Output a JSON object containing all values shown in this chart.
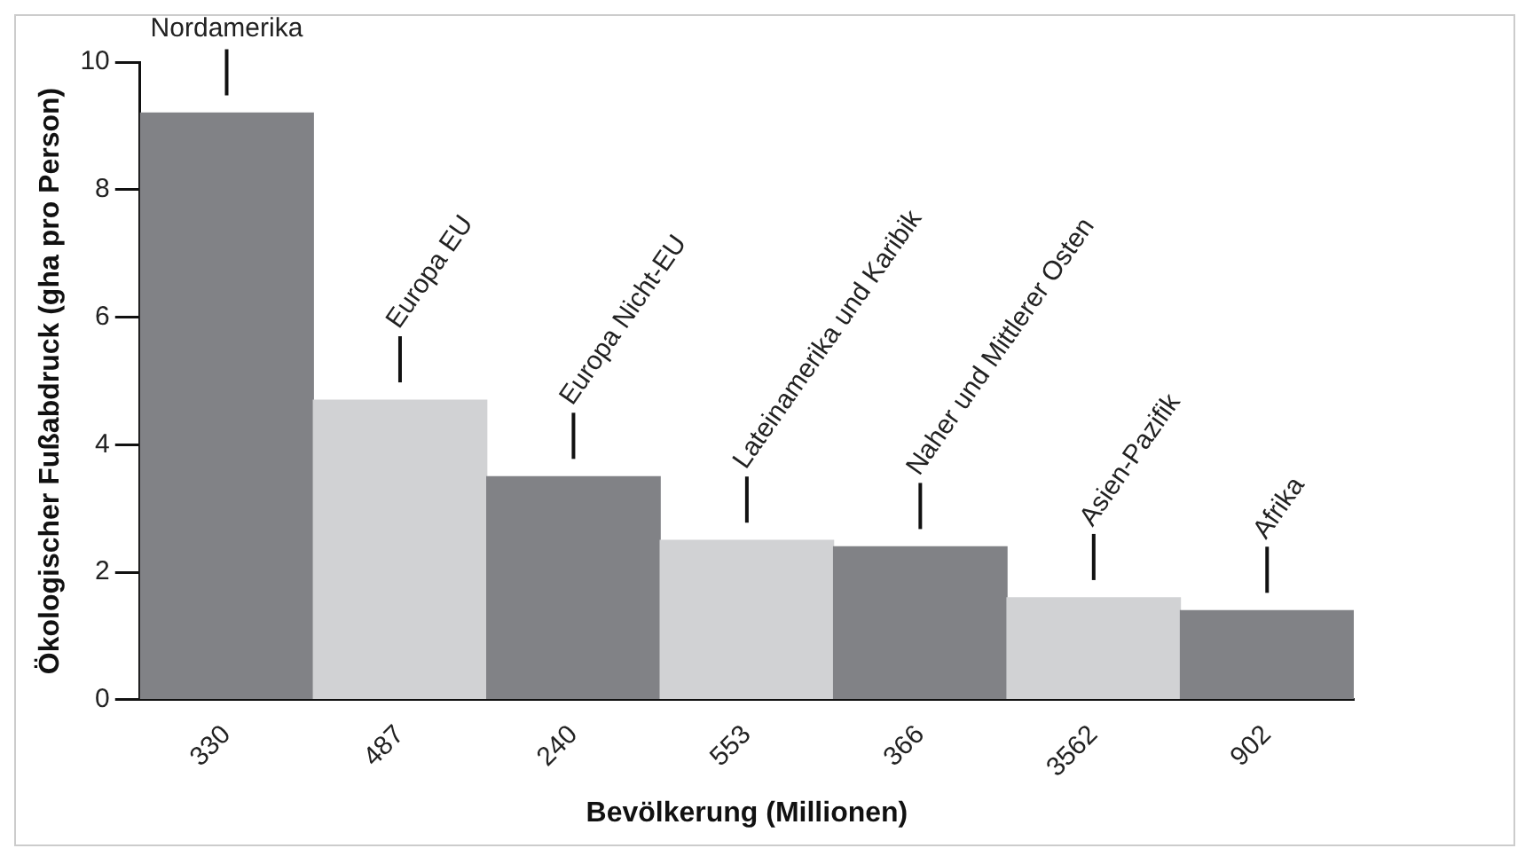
{
  "chart_data": {
    "type": "bar",
    "xlabel": "Bevölkerung (Millionen)",
    "ylabel": "Ökologischer Fußabdruck (gha pro Person)",
    "categories": [
      "330",
      "487",
      "240",
      "553",
      "366",
      "3562",
      "902"
    ],
    "values": [
      9.2,
      4.7,
      3.5,
      2.5,
      2.4,
      1.6,
      1.4
    ],
    "colors": [
      "#818286",
      "#d1d2d4",
      "#818286",
      "#d1d2d4",
      "#818286",
      "#d1d2d4",
      "#818286"
    ],
    "ylim": [
      0,
      10
    ],
    "yticks": [
      0,
      2,
      4,
      6,
      8,
      10
    ],
    "annotations": [
      {
        "text": "Nordamerika",
        "x": "330",
        "y": 9.2
      },
      {
        "text": "Europa EU",
        "x": "487",
        "y": 4.7
      },
      {
        "text": "Europa Nicht-EU",
        "x": "240",
        "y": 3.5
      },
      {
        "text": "Lateinamerika und Karibik",
        "x": "553",
        "y": 2.5
      },
      {
        "text": "Naher und Mittlerer Osten",
        "x": "366",
        "y": 2.4
      },
      {
        "text": "Asien-Pazifik",
        "x": "3562",
        "y": 1.6
      },
      {
        "text": "Afrika",
        "x": "902",
        "y": 1.4
      }
    ]
  }
}
